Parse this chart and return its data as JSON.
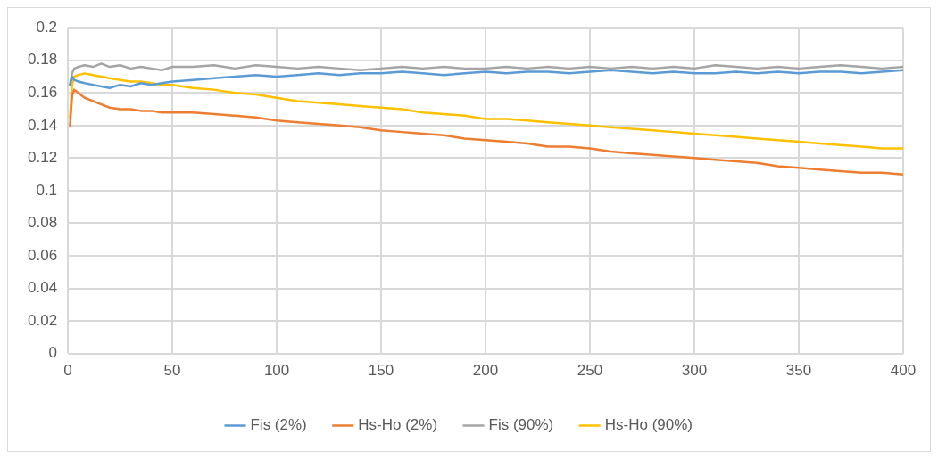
{
  "chart_data": {
    "type": "line",
    "x": [
      1,
      2,
      3,
      5,
      8,
      12,
      16,
      20,
      25,
      30,
      35,
      40,
      45,
      50,
      60,
      70,
      80,
      90,
      100,
      110,
      120,
      130,
      140,
      150,
      160,
      170,
      180,
      190,
      200,
      210,
      220,
      230,
      240,
      250,
      260,
      270,
      280,
      290,
      300,
      310,
      320,
      330,
      340,
      350,
      360,
      370,
      380,
      390,
      400
    ],
    "series": [
      {
        "name": "Fis (2%)",
        "color": "#5b9bd5",
        "values": [
          0.165,
          0.17,
          0.168,
          0.167,
          0.166,
          0.165,
          0.164,
          0.163,
          0.165,
          0.164,
          0.166,
          0.165,
          0.166,
          0.167,
          0.168,
          0.169,
          0.17,
          0.171,
          0.17,
          0.171,
          0.172,
          0.171,
          0.172,
          0.172,
          0.173,
          0.172,
          0.171,
          0.172,
          0.173,
          0.172,
          0.173,
          0.173,
          0.172,
          0.173,
          0.174,
          0.173,
          0.172,
          0.173,
          0.172,
          0.172,
          0.173,
          0.172,
          0.173,
          0.172,
          0.173,
          0.173,
          0.172,
          0.173,
          0.174
        ]
      },
      {
        "name": "Hs-Ho (2%)",
        "color": "#ed7d31",
        "values": [
          0.14,
          0.158,
          0.162,
          0.16,
          0.157,
          0.155,
          0.153,
          0.151,
          0.15,
          0.15,
          0.149,
          0.149,
          0.148,
          0.148,
          0.148,
          0.147,
          0.146,
          0.145,
          0.143,
          0.142,
          0.141,
          0.14,
          0.139,
          0.137,
          0.136,
          0.135,
          0.134,
          0.132,
          0.131,
          0.13,
          0.129,
          0.127,
          0.127,
          0.126,
          0.124,
          0.123,
          0.122,
          0.121,
          0.12,
          0.119,
          0.118,
          0.117,
          0.115,
          0.114,
          0.113,
          0.112,
          0.111,
          0.111,
          0.11
        ]
      },
      {
        "name": "Fis (90%)",
        "color": "#a5a5a5",
        "values": [
          0.165,
          0.172,
          0.175,
          0.176,
          0.177,
          0.176,
          0.178,
          0.176,
          0.177,
          0.175,
          0.176,
          0.175,
          0.174,
          0.176,
          0.176,
          0.177,
          0.175,
          0.177,
          0.176,
          0.175,
          0.176,
          0.175,
          0.174,
          0.175,
          0.176,
          0.175,
          0.176,
          0.175,
          0.175,
          0.176,
          0.175,
          0.176,
          0.175,
          0.176,
          0.175,
          0.176,
          0.175,
          0.176,
          0.175,
          0.177,
          0.176,
          0.175,
          0.176,
          0.175,
          0.176,
          0.177,
          0.176,
          0.175,
          0.176
        ]
      },
      {
        "name": "Hs-Ho (90%)",
        "color": "#ffc000",
        "values": [
          0.145,
          0.165,
          0.17,
          0.171,
          0.172,
          0.171,
          0.17,
          0.169,
          0.168,
          0.167,
          0.167,
          0.166,
          0.165,
          0.165,
          0.163,
          0.162,
          0.16,
          0.159,
          0.157,
          0.155,
          0.154,
          0.153,
          0.152,
          0.151,
          0.15,
          0.148,
          0.147,
          0.146,
          0.144,
          0.144,
          0.143,
          0.142,
          0.141,
          0.14,
          0.139,
          0.138,
          0.137,
          0.136,
          0.135,
          0.134,
          0.133,
          0.132,
          0.131,
          0.13,
          0.129,
          0.128,
          0.127,
          0.126,
          0.126
        ]
      }
    ],
    "xlim": [
      0,
      400
    ],
    "xticks": [
      0,
      50,
      100,
      150,
      200,
      250,
      300,
      350,
      400
    ],
    "ylim": [
      0,
      0.2
    ],
    "yticks": [
      0,
      0.02,
      0.04,
      0.06,
      0.08,
      0.1,
      0.12,
      0.14,
      0.16,
      0.18,
      0.2
    ],
    "grid": true,
    "legend": "bottom",
    "marker": "none",
    "line_style": "solid"
  }
}
